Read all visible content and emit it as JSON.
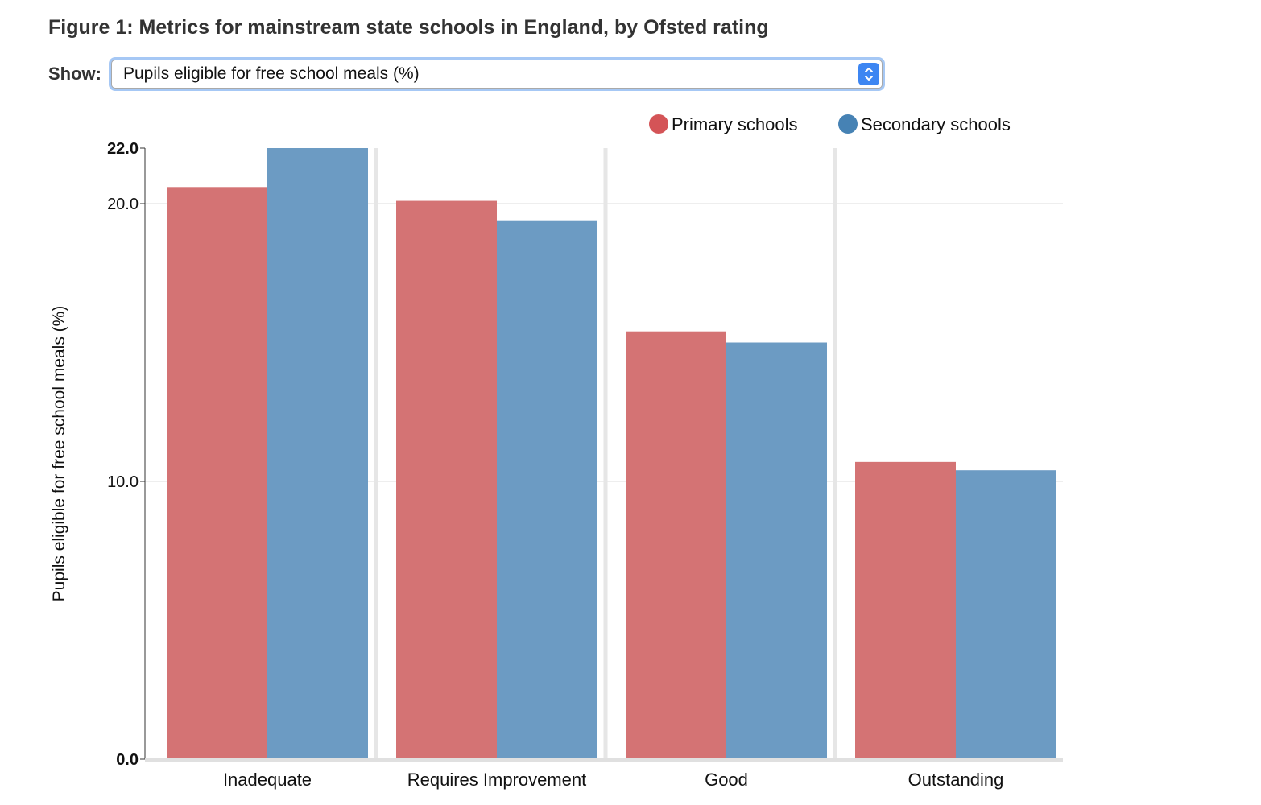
{
  "title": "Figure 1: Metrics for mainstream state schools in England, by Ofsted rating",
  "show": {
    "label": "Show:",
    "selected": "Pupils eligible for free school meals (%)"
  },
  "icons": {
    "select_stepper": "chevron-up-down-icon"
  },
  "colors": {
    "primary": "#d47374",
    "secondary": "#6c9bc3",
    "primary_legend": "#d45457",
    "secondary_legend": "#4682b4"
  },
  "chart_data": {
    "type": "bar",
    "categories": [
      "Inadequate",
      "Requires Improvement",
      "Good",
      "Outstanding"
    ],
    "series": [
      {
        "name": "Primary schools",
        "values": [
          20.6,
          20.1,
          15.4,
          10.7
        ]
      },
      {
        "name": "Secondary schools",
        "values": [
          22.0,
          19.4,
          15.0,
          10.4
        ]
      }
    ],
    "ylabel": "Pupils eligible for free school meals (%)",
    "ylim": [
      0,
      22
    ],
    "yticks": [
      {
        "value": 0,
        "label": "0.0",
        "bold": true
      },
      {
        "value": 10,
        "label": "10.0",
        "bold": false
      },
      {
        "value": 20,
        "label": "20.0",
        "bold": false
      },
      {
        "value": 22,
        "label": "22.0",
        "bold": true
      }
    ],
    "grid": true,
    "legend": "top-right"
  }
}
